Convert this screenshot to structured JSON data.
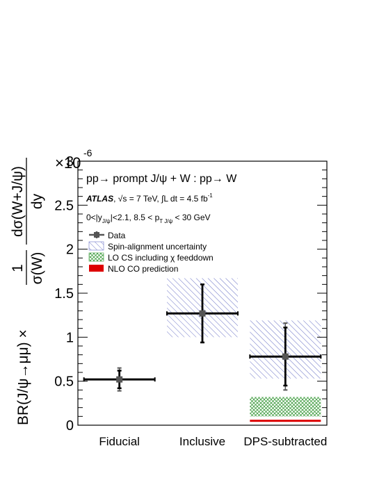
{
  "chart_data": {
    "type": "scatter",
    "categories": [
      "Fiducial",
      "Inclusive",
      "DPS-subtracted"
    ],
    "ylim": [
      0,
      3e-06
    ],
    "y_multiplier": "×10",
    "y_exponent": "-6",
    "yticks": [
      0,
      0.5,
      1,
      1.5,
      2,
      2.5,
      3
    ],
    "ytick_labels": [
      "0",
      "0.5",
      "1",
      "1.5",
      "2",
      "2.5",
      "3"
    ],
    "ylabel": {
      "prefix": "BR(J/ψ→μμ) ×",
      "frac1_num": "1",
      "frac1_den": "σ(W)",
      "frac2_num": "dσ(W+J/ψ)",
      "frac2_den": "dy"
    },
    "annotations": {
      "process": "pp→ prompt J/ψ + W : pp→ W",
      "atlas": "ATLAS",
      "energy": ", √s = 7 TeV, ∫L dt = 4.5 fb",
      "lumi_exp": "-1",
      "cuts_a": "0<|y",
      "cuts_sub1": "J/ψ",
      "cuts_b": "|<2.1, 8.5 < p",
      "cuts_sub2": "T  J/ψ",
      "cuts_c": " < 30 GeV"
    },
    "legend": [
      {
        "label": "Data",
        "style": "marker"
      },
      {
        "label": "Spin-alignment uncertainty",
        "style": "hatch-blue"
      },
      {
        "label": "LO CS including χ feeddown",
        "style": "hatch-green"
      },
      {
        "label": "NLO CO prediction",
        "style": "fill-red"
      }
    ],
    "series": [
      {
        "name": "Data",
        "values": [
          0.52,
          1.27,
          0.78
        ],
        "stat_err": [
          0.1,
          0.33,
          0.33
        ],
        "total_err": [
          0.13,
          0.33,
          0.38
        ]
      }
    ],
    "spin_alignment_band": [
      null,
      [
        1.0,
        1.67
      ],
      [
        0.53,
        1.19
      ]
    ],
    "lo_cs_band": [
      null,
      null,
      [
        0.1,
        0.32
      ]
    ],
    "nlo_co_value": [
      null,
      null,
      0.05
    ],
    "colors": {
      "data": "#000000",
      "marker": "#555555",
      "spin_hatch": "#6b73c6",
      "lo_cs_hatch": "#3a9a3a",
      "nlo_co": "#dd0000"
    }
  }
}
